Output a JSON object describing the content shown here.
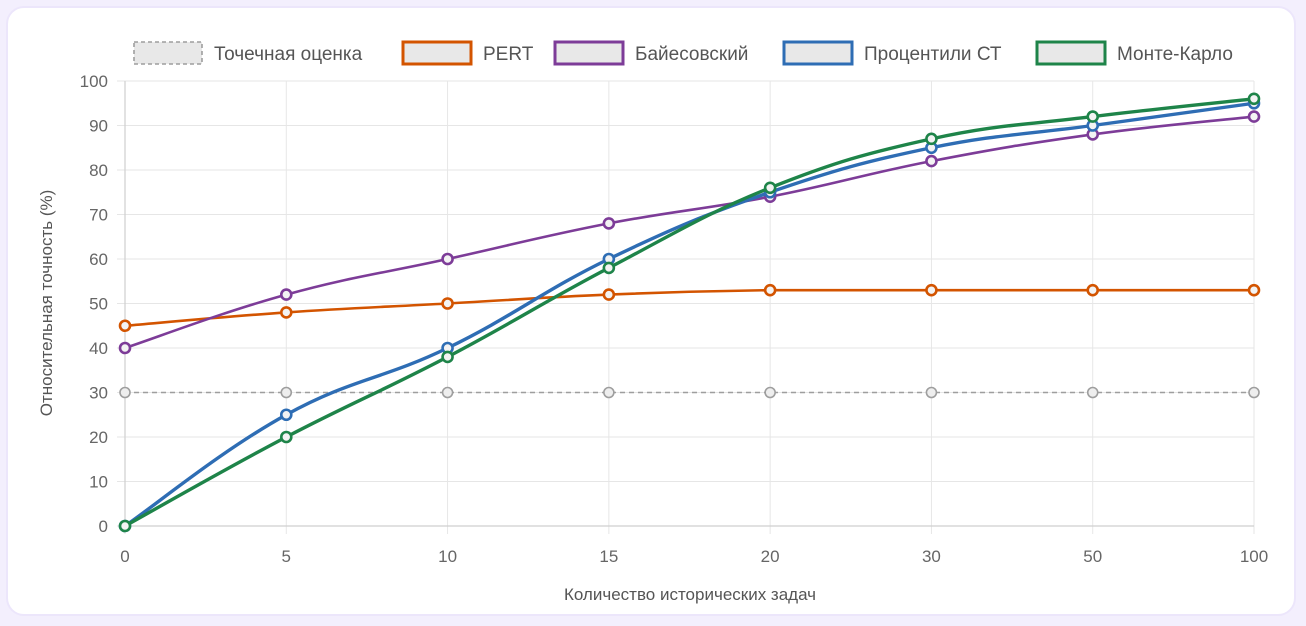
{
  "chart_data": {
    "type": "line",
    "categories": [
      "0",
      "5",
      "10",
      "15",
      "20",
      "30",
      "50",
      "100"
    ],
    "xlabel": "Количество исторических задач",
    "ylabel": "Относительная точность (%)",
    "ylim": [
      0,
      100
    ],
    "yticks": [
      "0",
      "10",
      "20",
      "30",
      "40",
      "50",
      "60",
      "70",
      "80",
      "90",
      "100"
    ],
    "grid": true,
    "legend_position": "top",
    "series": [
      {
        "name": "Точечная оценка",
        "color": "#9e9e9e",
        "dashed": true,
        "values": [
          30,
          30,
          30,
          30,
          30,
          30,
          30,
          30
        ]
      },
      {
        "name": "PERT",
        "color": "#d35400",
        "dashed": false,
        "values": [
          45,
          48,
          50,
          52,
          53,
          53,
          53,
          53
        ]
      },
      {
        "name": "Байесовский",
        "color": "#7d3c98",
        "dashed": false,
        "values": [
          40,
          52,
          60,
          68,
          74,
          82,
          88,
          92
        ]
      },
      {
        "name": "Процентили СТ",
        "color": "#2e6db4",
        "dashed": false,
        "values": [
          0,
          25,
          40,
          60,
          75,
          85,
          90,
          95
        ]
      },
      {
        "name": "Монте-Карло",
        "color": "#1e8449",
        "dashed": false,
        "values": [
          0,
          20,
          38,
          58,
          76,
          87,
          92,
          96
        ]
      }
    ]
  }
}
